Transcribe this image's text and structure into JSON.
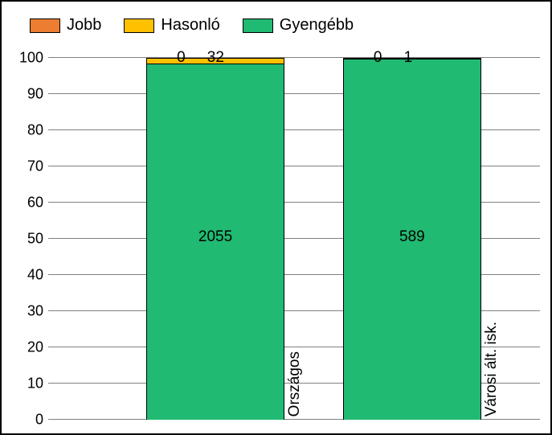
{
  "chart": {
    "type": "stacked-bar",
    "background_color": "#ffffff",
    "border_color": "#000000",
    "legend": [
      {
        "label": "Jobb",
        "color": "#ed7d31"
      },
      {
        "label": "Hasonló",
        "color": "#ffc000"
      },
      {
        "label": "Gyengébb",
        "color": "#21ba72"
      }
    ],
    "y_axis": {
      "min": 0,
      "max": 100,
      "tick_step": 10,
      "ticks": [
        0,
        10,
        20,
        30,
        40,
        50,
        60,
        70,
        80,
        90,
        100
      ],
      "grid_color": "#808080",
      "label_fontsize": 18
    },
    "bars": [
      {
        "category_label": "Országos",
        "left_pct": 20,
        "width_pct": 28,
        "segments": [
          {
            "series": "Gyengébb",
            "pct": 98.5,
            "color": "#21ba72",
            "value_label": "2055"
          },
          {
            "series": "Hasonló",
            "pct": 1.5,
            "color": "#ffc000",
            "value_label": "32"
          },
          {
            "series": "Jobb",
            "pct": 0,
            "color": "#ed7d31",
            "value_label": "0"
          }
        ]
      },
      {
        "category_label": "Városi ált. isk.",
        "left_pct": 60,
        "width_pct": 28,
        "segments": [
          {
            "series": "Gyengébb",
            "pct": 99.8,
            "color": "#21ba72",
            "value_label": "589"
          },
          {
            "series": "Hasonló",
            "pct": 0.2,
            "color": "#ffc000",
            "value_label": "1"
          },
          {
            "series": "Jobb",
            "pct": 0,
            "color": "#ed7d31",
            "value_label": "0"
          }
        ]
      }
    ]
  }
}
